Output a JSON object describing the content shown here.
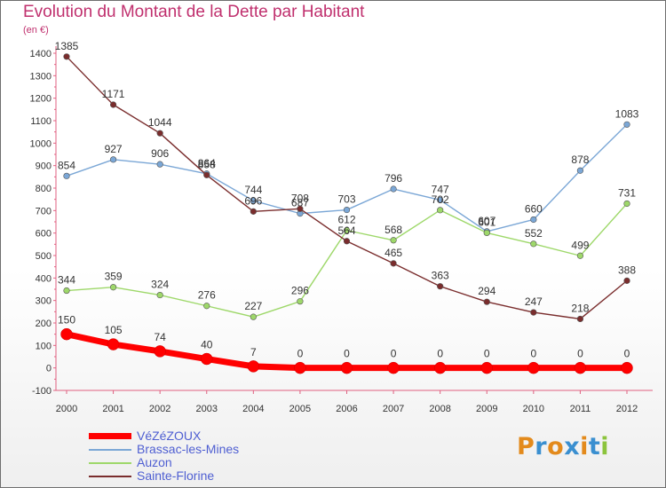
{
  "title": "Evolution du Montant de la Dette par Habitant",
  "unit_label": "(en €)",
  "brand": {
    "text": "Proxiti",
    "letters": [
      {
        "ch": "P",
        "color": "#e38a1c"
      },
      {
        "ch": "r",
        "color": "#3a8fd0"
      },
      {
        "ch": "o",
        "color": "#e38a1c"
      },
      {
        "ch": "x",
        "color": "#3a8fd0"
      },
      {
        "ch": "i",
        "color": "#e38a1c"
      },
      {
        "ch": "t",
        "color": "#3a8fd0"
      },
      {
        "ch": "i",
        "color": "#8cc43c"
      }
    ]
  },
  "chart_data": {
    "type": "line",
    "title": "Evolution du Montant de la Dette par Habitant",
    "ylabel": "(en €)",
    "xlabel": "",
    "x": [
      "2000",
      "2001",
      "2002",
      "2003",
      "2004",
      "2005",
      "2006",
      "2007",
      "2008",
      "2009",
      "2010",
      "2011",
      "2012"
    ],
    "ylim": [
      -100,
      1400
    ],
    "yticks": [
      -100,
      0,
      100,
      200,
      300,
      400,
      500,
      600,
      700,
      800,
      900,
      1000,
      1100,
      1200,
      1300,
      1400
    ],
    "grid": false,
    "legend_position": "bottom-left",
    "series": [
      {
        "name": "VéZéZOUX",
        "color": "#ff0000",
        "values": [
          150,
          105,
          74,
          40,
          7,
          0,
          0,
          0,
          0,
          0,
          0,
          0,
          0
        ]
      },
      {
        "name": "Brassac-les-Mines",
        "color": "#7ba7d6",
        "values": [
          854,
          927,
          906,
          864,
          744,
          687,
          703,
          796,
          747,
          607,
          660,
          878,
          1083
        ]
      },
      {
        "name": "Auzon",
        "color": "#9ed86a",
        "values": [
          344,
          359,
          324,
          276,
          227,
          296,
          612,
          568,
          702,
          601,
          552,
          499,
          731
        ]
      },
      {
        "name": "Sainte-Florine",
        "color": "#7a2d2d",
        "values": [
          1385,
          1171,
          1044,
          858,
          696,
          708,
          564,
          465,
          363,
          294,
          247,
          218,
          388
        ]
      }
    ]
  }
}
